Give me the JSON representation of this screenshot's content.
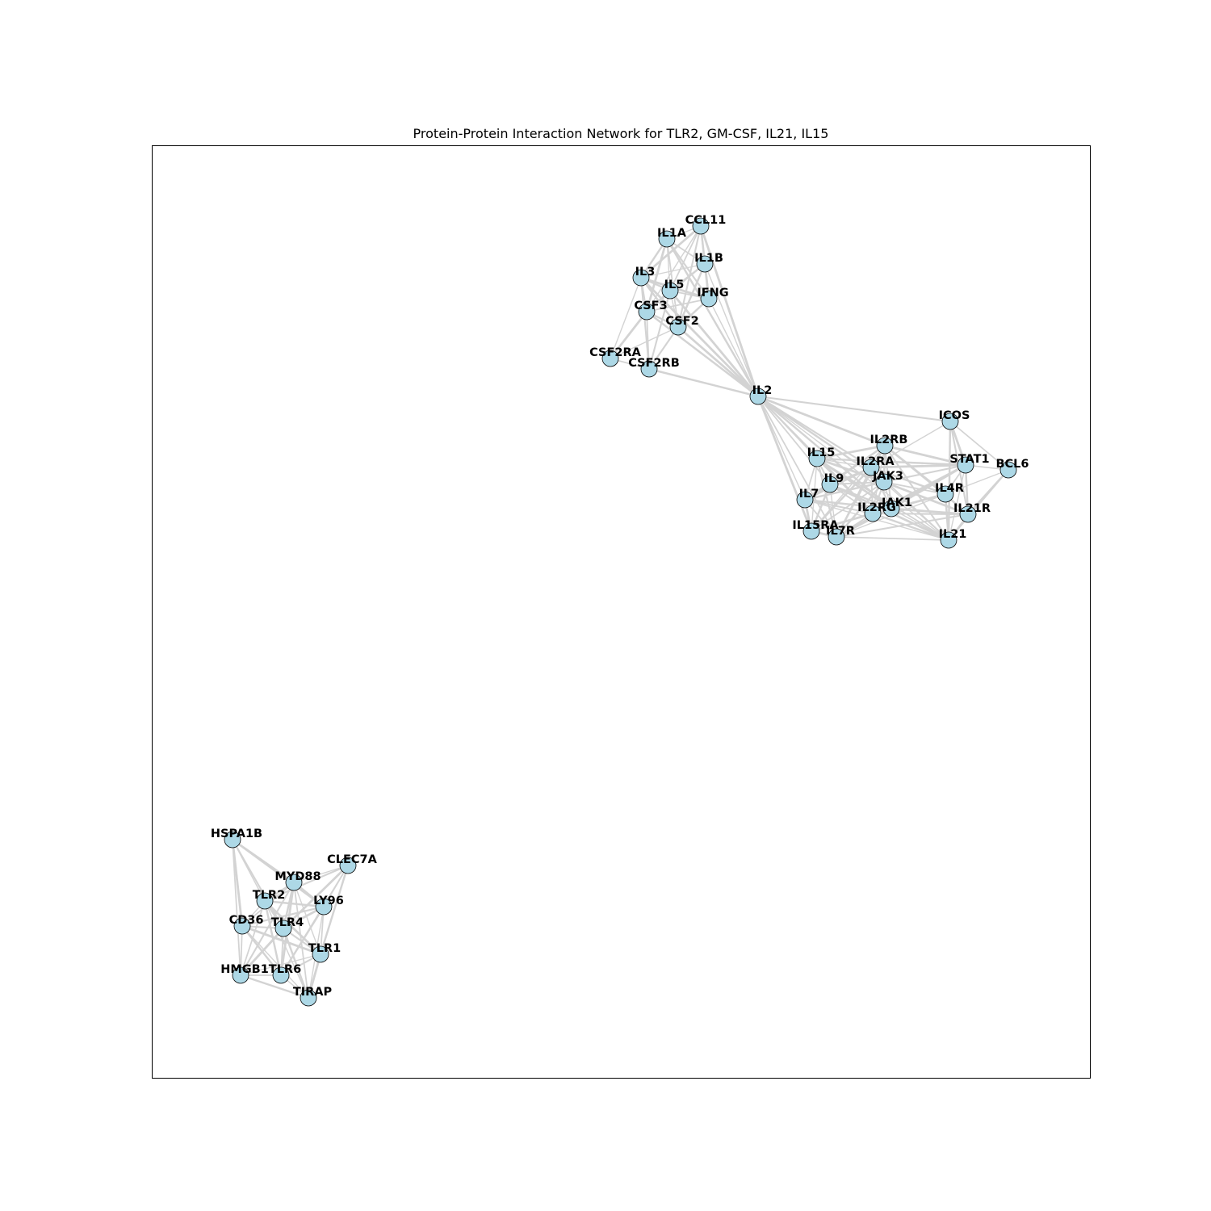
{
  "title": "Protein-Protein Interaction Network for TLR2, GM-CSF, IL21, IL15",
  "colors": {
    "node_fill": "#add8e6",
    "node_stroke": "#000000",
    "edge": "#d3d3d3",
    "frame": "#000000"
  },
  "nodes": [
    {
      "id": "CCL11"
    },
    {
      "id": "IL1A"
    },
    {
      "id": "IL1B"
    },
    {
      "id": "IL3"
    },
    {
      "id": "IL5"
    },
    {
      "id": "IFNG"
    },
    {
      "id": "CSF3"
    },
    {
      "id": "CSF2"
    },
    {
      "id": "CSF2RA"
    },
    {
      "id": "CSF2RB"
    },
    {
      "id": "IL2"
    },
    {
      "id": "ICOS"
    },
    {
      "id": "IL2RB"
    },
    {
      "id": "IL15"
    },
    {
      "id": "IL2RA"
    },
    {
      "id": "STAT1"
    },
    {
      "id": "BCL6"
    },
    {
      "id": "IL9"
    },
    {
      "id": "JAK3"
    },
    {
      "id": "IL4R"
    },
    {
      "id": "IL7"
    },
    {
      "id": "JAK1"
    },
    {
      "id": "IL2RG"
    },
    {
      "id": "IL21R"
    },
    {
      "id": "IL15RA"
    },
    {
      "id": "IL7R"
    },
    {
      "id": "IL21"
    },
    {
      "id": "HSPA1B"
    },
    {
      "id": "CLEC7A"
    },
    {
      "id": "MYD88"
    },
    {
      "id": "TLR2"
    },
    {
      "id": "LY96"
    },
    {
      "id": "CD36"
    },
    {
      "id": "TLR4"
    },
    {
      "id": "TLR1"
    },
    {
      "id": "HMGB1"
    },
    {
      "id": "TLR6"
    },
    {
      "id": "TIRAP"
    }
  ],
  "edges": [
    [
      "CCL11",
      "IL1A"
    ],
    [
      "CCL11",
      "IL1B"
    ],
    [
      "CCL11",
      "IL3"
    ],
    [
      "CCL11",
      "IL5"
    ],
    [
      "CCL11",
      "IFNG"
    ],
    [
      "CCL11",
      "CSF3"
    ],
    [
      "CCL11",
      "CSF2"
    ],
    [
      "CCL11",
      "IL2"
    ],
    [
      "IL1A",
      "IL1B"
    ],
    [
      "IL1A",
      "IL3"
    ],
    [
      "IL1A",
      "IL5"
    ],
    [
      "IL1A",
      "IFNG"
    ],
    [
      "IL1A",
      "CSF3"
    ],
    [
      "IL1A",
      "CSF2"
    ],
    [
      "IL1A",
      "IL2"
    ],
    [
      "IL1B",
      "IL3"
    ],
    [
      "IL1B",
      "IL5"
    ],
    [
      "IL1B",
      "IFNG"
    ],
    [
      "IL1B",
      "CSF3"
    ],
    [
      "IL1B",
      "CSF2"
    ],
    [
      "IL1B",
      "IL2"
    ],
    [
      "IL3",
      "IL5"
    ],
    [
      "IL3",
      "IFNG"
    ],
    [
      "IL3",
      "CSF3"
    ],
    [
      "IL3",
      "CSF2"
    ],
    [
      "IL3",
      "CSF2RA"
    ],
    [
      "IL3",
      "CSF2RB"
    ],
    [
      "IL3",
      "IL2"
    ],
    [
      "IL5",
      "IFNG"
    ],
    [
      "IL5",
      "CSF3"
    ],
    [
      "IL5",
      "CSF2"
    ],
    [
      "IL5",
      "CSF2RB"
    ],
    [
      "IL5",
      "IL2"
    ],
    [
      "IFNG",
      "CSF3"
    ],
    [
      "IFNG",
      "CSF2"
    ],
    [
      "IFNG",
      "IL2"
    ],
    [
      "CSF3",
      "CSF2"
    ],
    [
      "CSF3",
      "CSF2RA"
    ],
    [
      "CSF3",
      "CSF2RB"
    ],
    [
      "CSF3",
      "IL2"
    ],
    [
      "CSF2",
      "CSF2RA"
    ],
    [
      "CSF2",
      "CSF2RB"
    ],
    [
      "CSF2",
      "IL2"
    ],
    [
      "CSF2RA",
      "CSF2RB"
    ],
    [
      "CSF2RB",
      "IL2"
    ],
    [
      "IL2",
      "IL15"
    ],
    [
      "IL2",
      "IL2RA"
    ],
    [
      "IL2",
      "IL2RB"
    ],
    [
      "IL2",
      "IL9"
    ],
    [
      "IL2",
      "JAK3"
    ],
    [
      "IL2",
      "IL7"
    ],
    [
      "IL2",
      "IL2RG"
    ],
    [
      "IL2",
      "IL15RA"
    ],
    [
      "IL2",
      "IL7R"
    ],
    [
      "IL2",
      "JAK1"
    ],
    [
      "IL2",
      "IL21"
    ],
    [
      "IL2",
      "ICOS"
    ],
    [
      "ICOS",
      "STAT1"
    ],
    [
      "ICOS",
      "BCL6"
    ],
    [
      "ICOS",
      "IL21"
    ],
    [
      "ICOS",
      "IL2RA"
    ],
    [
      "ICOS",
      "IL21R"
    ],
    [
      "IL2RB",
      "IL15"
    ],
    [
      "IL2RB",
      "IL2RA"
    ],
    [
      "IL2RB",
      "JAK3"
    ],
    [
      "IL2RB",
      "IL2RG"
    ],
    [
      "IL2RB",
      "JAK1"
    ],
    [
      "IL2RB",
      "STAT1"
    ],
    [
      "IL2RB",
      "IL9"
    ],
    [
      "IL2RB",
      "IL7"
    ],
    [
      "IL2RB",
      "IL15RA"
    ],
    [
      "IL2RB",
      "IL21"
    ],
    [
      "IL2RB",
      "IL4R"
    ],
    [
      "IL2RB",
      "IL21R"
    ],
    [
      "IL2RB",
      "IL7R"
    ],
    [
      "IL15",
      "IL2RA"
    ],
    [
      "IL15",
      "IL9"
    ],
    [
      "IL15",
      "JAK3"
    ],
    [
      "IL15",
      "IL7"
    ],
    [
      "IL15",
      "IL2RG"
    ],
    [
      "IL15",
      "IL15RA"
    ],
    [
      "IL15",
      "IL7R"
    ],
    [
      "IL15",
      "JAK1"
    ],
    [
      "IL15",
      "IL21"
    ],
    [
      "IL15",
      "STAT1"
    ],
    [
      "IL2RA",
      "IL9"
    ],
    [
      "IL2RA",
      "JAK3"
    ],
    [
      "IL2RA",
      "IL7"
    ],
    [
      "IL2RA",
      "IL2RG"
    ],
    [
      "IL2RA",
      "IL15RA"
    ],
    [
      "IL2RA",
      "IL7R"
    ],
    [
      "IL2RA",
      "JAK1"
    ],
    [
      "IL2RA",
      "STAT1"
    ],
    [
      "IL2RA",
      "IL21"
    ],
    [
      "IL2RA",
      "IL4R"
    ],
    [
      "STAT1",
      "BCL6"
    ],
    [
      "STAT1",
      "JAK3"
    ],
    [
      "STAT1",
      "JAK1"
    ],
    [
      "STAT1",
      "IL4R"
    ],
    [
      "STAT1",
      "IL21R"
    ],
    [
      "STAT1",
      "IL21"
    ],
    [
      "STAT1",
      "IL2RG"
    ],
    [
      "STAT1",
      "IL7R"
    ],
    [
      "BCL6",
      "IL21"
    ],
    [
      "BCL6",
      "IL21R"
    ],
    [
      "BCL6",
      "IL4R"
    ],
    [
      "IL9",
      "JAK3"
    ],
    [
      "IL9",
      "IL7"
    ],
    [
      "IL9",
      "IL2RG"
    ],
    [
      "IL9",
      "IL15RA"
    ],
    [
      "IL9",
      "IL7R"
    ],
    [
      "IL9",
      "JAK1"
    ],
    [
      "IL9",
      "IL21"
    ],
    [
      "JAK3",
      "IL4R"
    ],
    [
      "JAK3",
      "IL7"
    ],
    [
      "JAK3",
      "JAK1"
    ],
    [
      "JAK3",
      "IL2RG"
    ],
    [
      "JAK3",
      "IL21R"
    ],
    [
      "JAK3",
      "IL15RA"
    ],
    [
      "JAK3",
      "IL7R"
    ],
    [
      "JAK3",
      "IL21"
    ],
    [
      "IL4R",
      "JAK1"
    ],
    [
      "IL4R",
      "IL2RG"
    ],
    [
      "IL4R",
      "IL21R"
    ],
    [
      "IL4R",
      "IL21"
    ],
    [
      "IL4R",
      "IL7R"
    ],
    [
      "IL7",
      "IL2RG"
    ],
    [
      "IL7",
      "IL15RA"
    ],
    [
      "IL7",
      "IL7R"
    ],
    [
      "IL7",
      "JAK1"
    ],
    [
      "IL7",
      "IL21"
    ],
    [
      "JAK1",
      "IL2RG"
    ],
    [
      "JAK1",
      "IL21R"
    ],
    [
      "JAK1",
      "IL15RA"
    ],
    [
      "JAK1",
      "IL7R"
    ],
    [
      "JAK1",
      "IL21"
    ],
    [
      "IL2RG",
      "IL21R"
    ],
    [
      "IL2RG",
      "IL15RA"
    ],
    [
      "IL2RG",
      "IL7R"
    ],
    [
      "IL2RG",
      "IL21"
    ],
    [
      "IL21R",
      "IL21"
    ],
    [
      "IL21R",
      "IL7R"
    ],
    [
      "IL15RA",
      "IL7R"
    ],
    [
      "IL7R",
      "IL21"
    ],
    [
      "HSPA1B",
      "MYD88"
    ],
    [
      "HSPA1B",
      "TLR2"
    ],
    [
      "HSPA1B",
      "TLR4"
    ],
    [
      "HSPA1B",
      "CD36"
    ],
    [
      "HSPA1B",
      "HMGB1"
    ],
    [
      "HSPA1B",
      "LY96"
    ],
    [
      "CLEC7A",
      "MYD88"
    ],
    [
      "CLEC7A",
      "TLR2"
    ],
    [
      "CLEC7A",
      "TLR4"
    ],
    [
      "CLEC7A",
      "LY96"
    ],
    [
      "CLEC7A",
      "TLR1"
    ],
    [
      "CLEC7A",
      "TLR6"
    ],
    [
      "MYD88",
      "TLR2"
    ],
    [
      "MYD88",
      "LY96"
    ],
    [
      "MYD88",
      "CD36"
    ],
    [
      "MYD88",
      "TLR4"
    ],
    [
      "MYD88",
      "TLR1"
    ],
    [
      "MYD88",
      "HMGB1"
    ],
    [
      "MYD88",
      "TLR6"
    ],
    [
      "MYD88",
      "TIRAP"
    ],
    [
      "TLR2",
      "LY96"
    ],
    [
      "TLR2",
      "CD36"
    ],
    [
      "TLR2",
      "TLR4"
    ],
    [
      "TLR2",
      "TLR1"
    ],
    [
      "TLR2",
      "HMGB1"
    ],
    [
      "TLR2",
      "TLR6"
    ],
    [
      "TLR2",
      "TIRAP"
    ],
    [
      "LY96",
      "CD36"
    ],
    [
      "LY96",
      "TLR4"
    ],
    [
      "LY96",
      "TLR1"
    ],
    [
      "LY96",
      "TLR6"
    ],
    [
      "LY96",
      "TIRAP"
    ],
    [
      "CD36",
      "TLR4"
    ],
    [
      "CD36",
      "TLR1"
    ],
    [
      "CD36",
      "HMGB1"
    ],
    [
      "CD36",
      "TLR6"
    ],
    [
      "CD36",
      "TIRAP"
    ],
    [
      "TLR4",
      "TLR1"
    ],
    [
      "TLR4",
      "HMGB1"
    ],
    [
      "TLR4",
      "TLR6"
    ],
    [
      "TLR4",
      "TIRAP"
    ],
    [
      "TLR1",
      "HMGB1"
    ],
    [
      "TLR1",
      "TLR6"
    ],
    [
      "TLR1",
      "TIRAP"
    ],
    [
      "HMGB1",
      "TLR6"
    ],
    [
      "HMGB1",
      "TIRAP"
    ],
    [
      "TLR6",
      "TIRAP"
    ]
  ]
}
